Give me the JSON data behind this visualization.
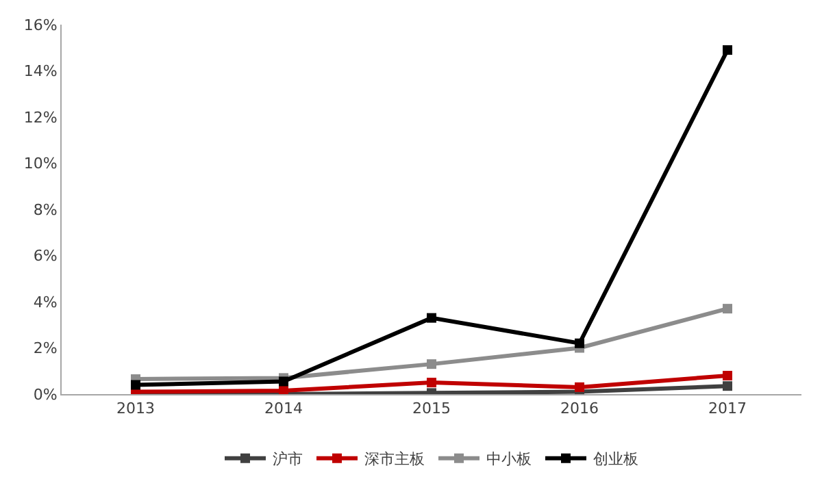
{
  "chart_data": {
    "type": "line",
    "categories": [
      "2013",
      "2014",
      "2015",
      "2016",
      "2017"
    ],
    "series": [
      {
        "name": "沪市",
        "color": "#404040",
        "values": [
          0,
          0,
          0.05,
          0.1,
          0.35
        ]
      },
      {
        "name": "深市主板",
        "color": "#c00000",
        "values": [
          0.1,
          0.15,
          0.5,
          0.3,
          0.8
        ]
      },
      {
        "name": "中小板",
        "color": "#8c8c8c",
        "values": [
          0.65,
          0.7,
          1.3,
          2.0,
          3.7
        ]
      },
      {
        "name": "创业板",
        "color": "#000000",
        "values": [
          0.4,
          0.55,
          3.3,
          2.2,
          14.9
        ]
      }
    ],
    "ylim": [
      0,
      16
    ],
    "yticks": [
      {
        "value": 0,
        "label": "0%"
      },
      {
        "value": 2,
        "label": "2%"
      },
      {
        "value": 4,
        "label": "4%"
      },
      {
        "value": 6,
        "label": "6%"
      },
      {
        "value": 8,
        "label": "8%"
      },
      {
        "value": 10,
        "label": "10%"
      },
      {
        "value": 12,
        "label": "12%"
      },
      {
        "value": 14,
        "label": "14%"
      },
      {
        "value": 16,
        "label": "16%"
      }
    ],
    "legend": "bottom",
    "marker": "square",
    "line_style": "solid"
  }
}
